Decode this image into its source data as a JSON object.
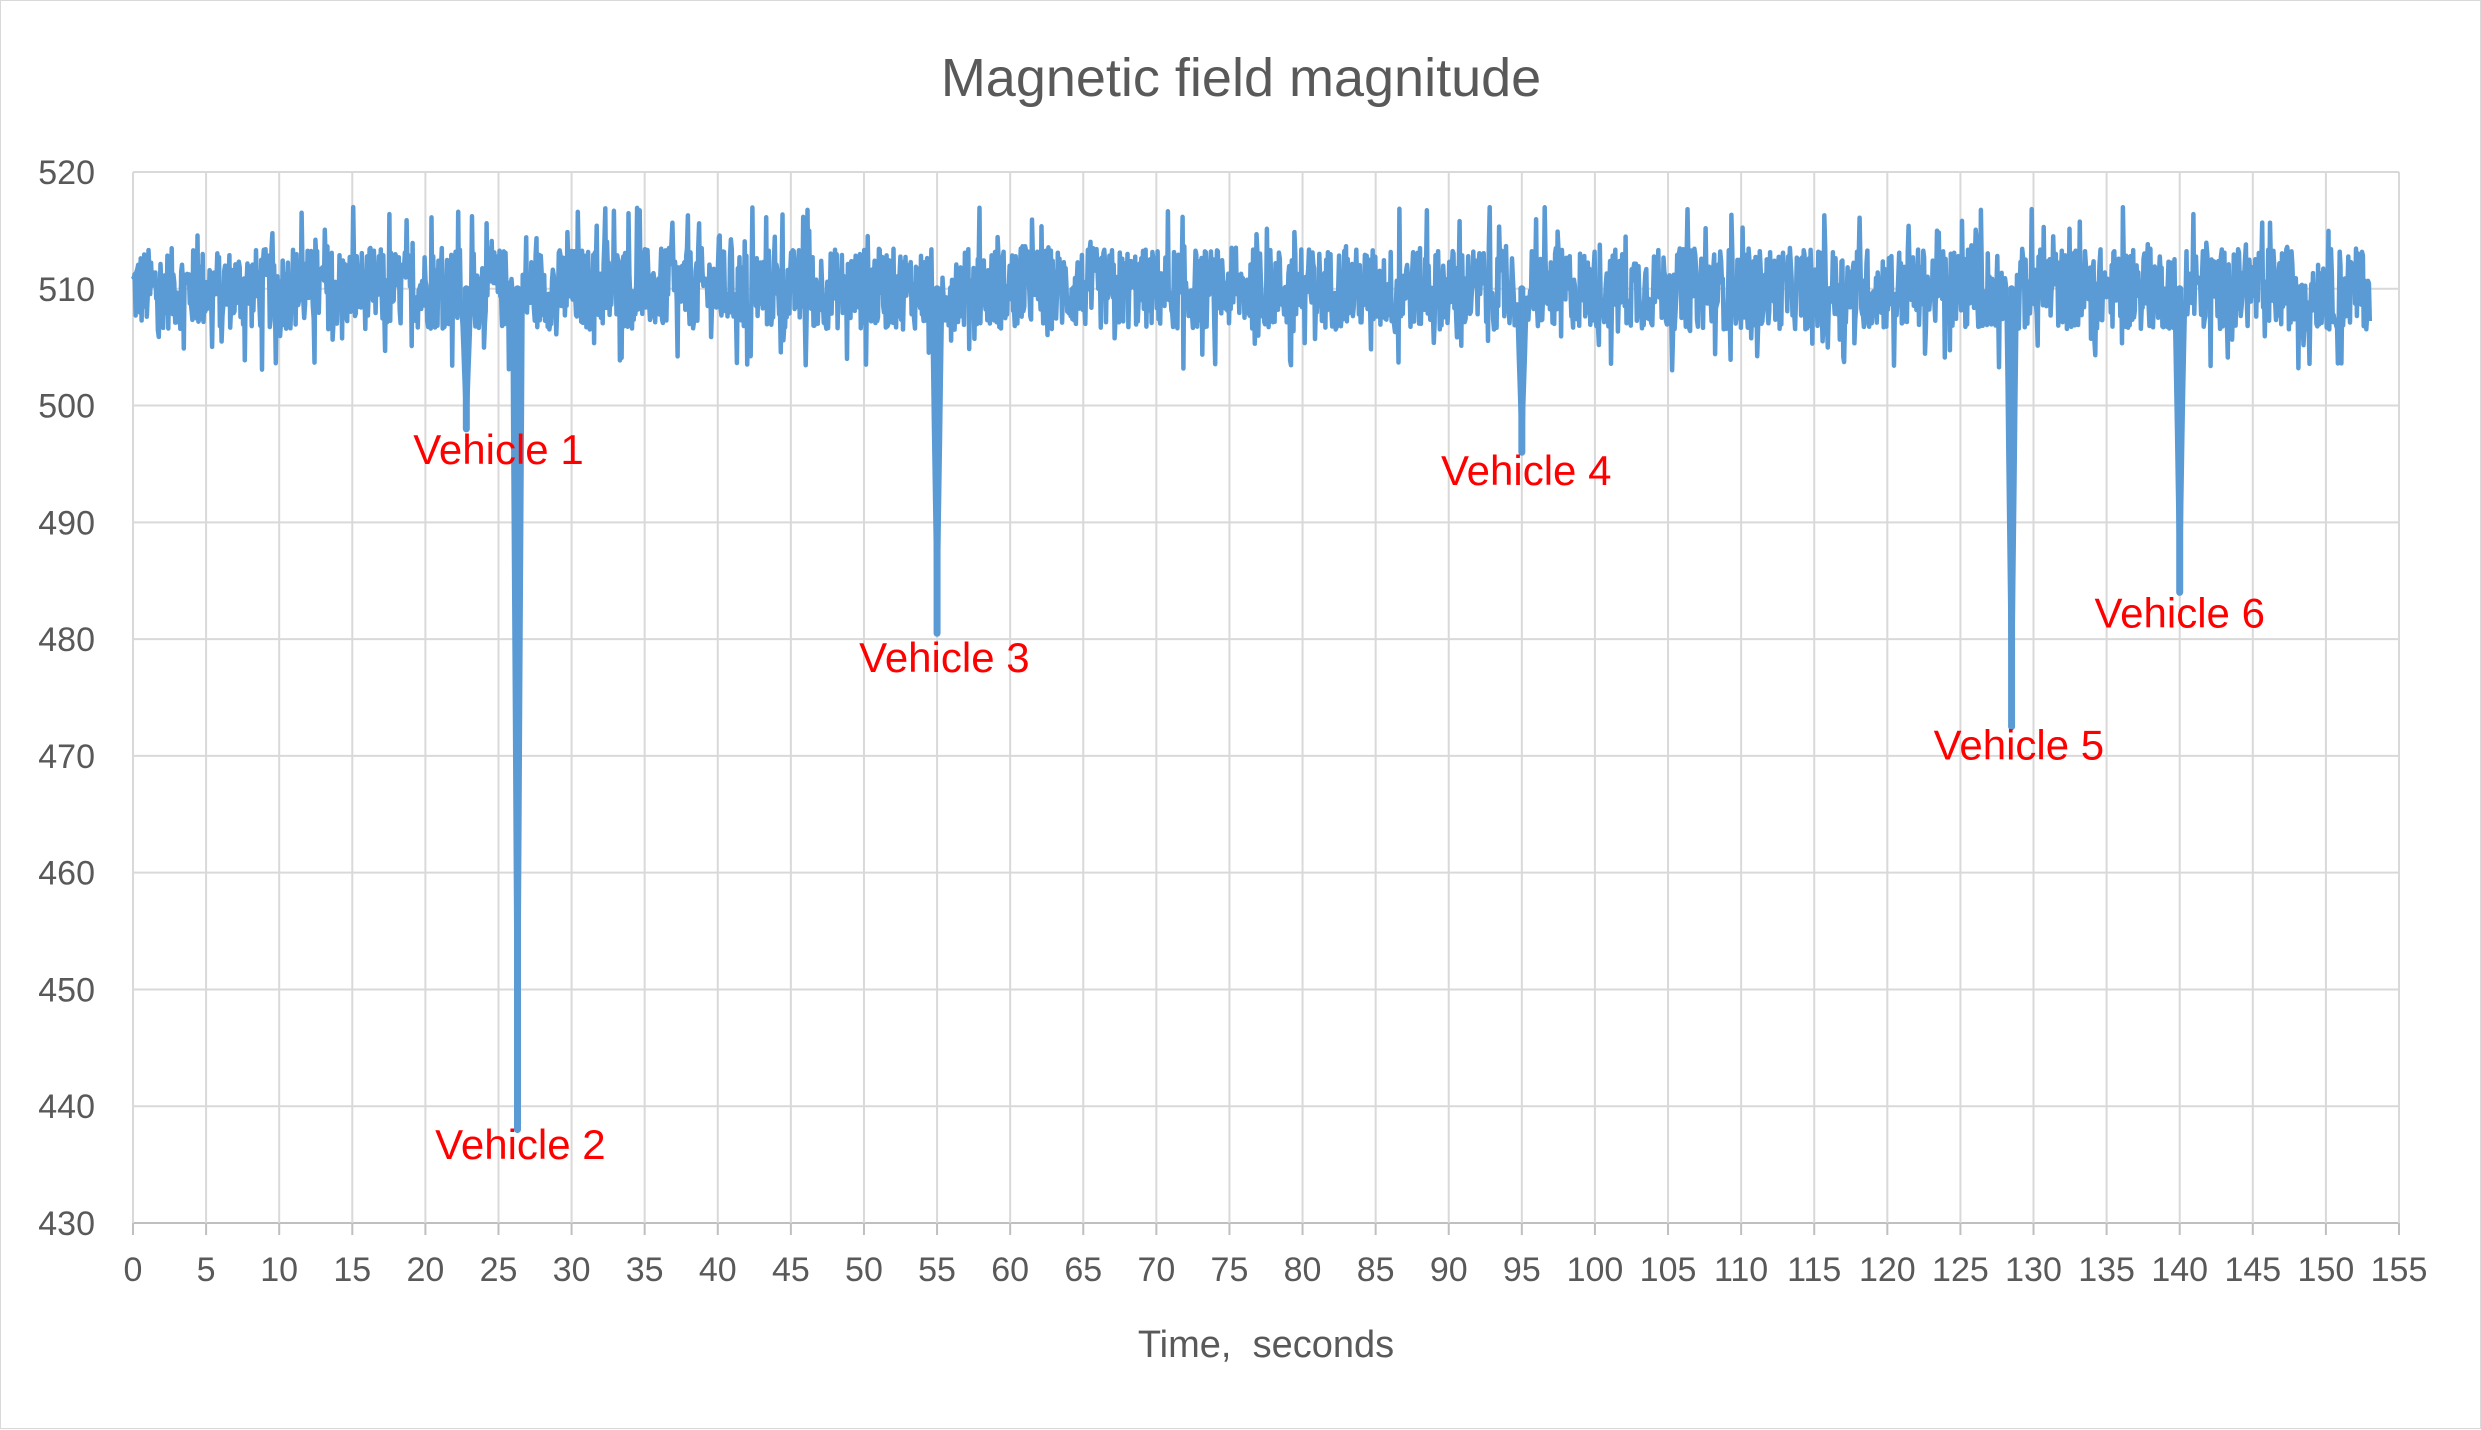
{
  "chart_data": {
    "type": "line",
    "title": "Magnetic field magnitude",
    "xlabel": "Time,  seconds",
    "ylabel": "",
    "xlim": [
      0,
      155
    ],
    "ylim": [
      430,
      520
    ],
    "x_ticks": [
      0,
      5,
      10,
      15,
      20,
      25,
      30,
      35,
      40,
      45,
      50,
      55,
      60,
      65,
      70,
      75,
      80,
      85,
      90,
      95,
      100,
      105,
      110,
      115,
      120,
      125,
      130,
      135,
      140,
      145,
      150,
      155
    ],
    "y_ticks": [
      430,
      440,
      450,
      460,
      470,
      480,
      490,
      500,
      510,
      520
    ],
    "grid": "on",
    "legend": "none",
    "line_color": "#5b9bd5",
    "annotation_color": "#ff0000",
    "series": [
      {
        "baseline": 510,
        "noise_range": [
          503,
          518
        ],
        "x_end": 153,
        "dips": [
          {
            "x": 22.8,
            "y": 498
          },
          {
            "x": 26.3,
            "y": 438
          },
          {
            "x": 55.0,
            "y": 480.5
          },
          {
            "x": 95.0,
            "y": 496
          },
          {
            "x": 128.5,
            "y": 472.5
          },
          {
            "x": 140.0,
            "y": 484
          }
        ]
      }
    ],
    "annotations": [
      {
        "text": "Vehicle 1",
        "x": 25.0,
        "y": 495.0
      },
      {
        "text": "Vehicle 2",
        "x": 26.5,
        "y": 435.5
      },
      {
        "text": "Vehicle 3",
        "x": 55.5,
        "y": 477.2
      },
      {
        "text": "Vehicle 4",
        "x": 95.3,
        "y": 493.2
      },
      {
        "text": "Vehicle 5",
        "x": 129.0,
        "y": 469.7
      },
      {
        "text": "Vehicle 6",
        "x": 140.0,
        "y": 481.0
      }
    ]
  }
}
